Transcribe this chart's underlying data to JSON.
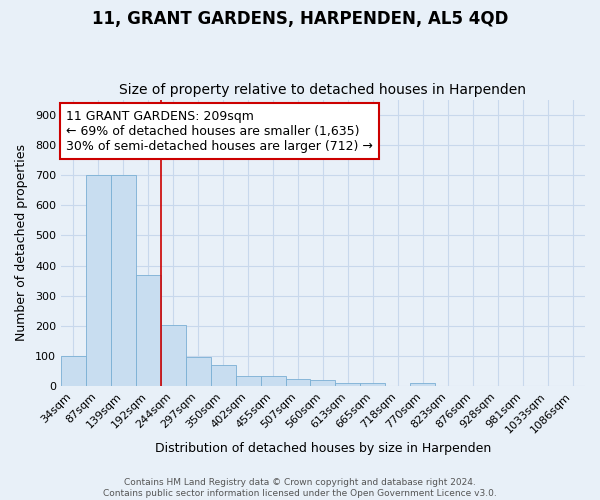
{
  "title": "11, GRANT GARDENS, HARPENDEN, AL5 4QD",
  "subtitle": "Size of property relative to detached houses in Harpenden",
  "xlabel": "Distribution of detached houses by size in Harpenden",
  "ylabel": "Number of detached properties",
  "categories": [
    "34sqm",
    "87sqm",
    "139sqm",
    "192sqm",
    "244sqm",
    "297sqm",
    "350sqm",
    "402sqm",
    "455sqm",
    "507sqm",
    "560sqm",
    "613sqm",
    "665sqm",
    "718sqm",
    "770sqm",
    "823sqm",
    "876sqm",
    "928sqm",
    "981sqm",
    "1033sqm",
    "1086sqm"
  ],
  "values": [
    100,
    700,
    700,
    370,
    205,
    97,
    72,
    33,
    33,
    25,
    22,
    10,
    10,
    0,
    10,
    0,
    0,
    0,
    0,
    0,
    0
  ],
  "bar_color": "#c8ddf0",
  "bar_edge_color": "#7aafd4",
  "bar_edge_width": 0.6,
  "grid_color": "#c8d8ec",
  "background_color": "#e8f0f8",
  "plot_bg_color": "#e8f0f8",
  "property_line_x": 3.5,
  "property_line_color": "#cc0000",
  "annotation_text": "11 GRANT GARDENS: 209sqm\n← 69% of detached houses are smaller (1,635)\n30% of semi-detached houses are larger (712) →",
  "annotation_box_color": "#ffffff",
  "annotation_box_edge": "#cc0000",
  "ylim": [
    0,
    950
  ],
  "yticks": [
    0,
    100,
    200,
    300,
    400,
    500,
    600,
    700,
    800,
    900
  ],
  "footer": "Contains HM Land Registry data © Crown copyright and database right 2024.\nContains public sector information licensed under the Open Government Licence v3.0.",
  "title_fontsize": 12,
  "subtitle_fontsize": 10,
  "axis_label_fontsize": 9,
  "tick_fontsize": 8,
  "annotation_fontsize": 9
}
